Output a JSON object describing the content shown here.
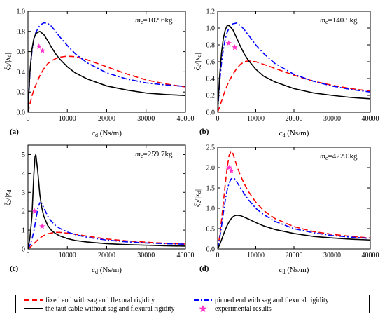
{
  "chart_data": [
    {
      "id": "a",
      "type": "line",
      "panel_label": "(a)",
      "annotation": "m_e=102.6kg",
      "annotation_sub": "e",
      "annotation_value": "=102.6kg",
      "xlabel": "c_d (Ns/m)",
      "ylabel": "ξ2/|x_d|",
      "xlim": [
        0,
        40000
      ],
      "ylim": [
        0,
        1.0
      ],
      "xticks": [
        0,
        10000,
        20000,
        30000,
        40000
      ],
      "yticks": [
        0.0,
        0.2,
        0.4,
        0.6,
        0.8,
        1.0
      ],
      "ytick_labels": [
        "0.0",
        "0.2",
        "0.4",
        "0.6",
        "0.8",
        "1.0"
      ],
      "x": [
        0,
        500,
        1000,
        1500,
        2000,
        3000,
        4000,
        5000,
        6000,
        7000,
        8000,
        10000,
        12000,
        15000,
        20000,
        25000,
        30000,
        35000,
        40000
      ],
      "series": [
        {
          "key": "fixed",
          "values": [
            0,
            0.08,
            0.16,
            0.22,
            0.27,
            0.36,
            0.43,
            0.48,
            0.51,
            0.53,
            0.545,
            0.555,
            0.55,
            0.52,
            0.45,
            0.38,
            0.32,
            0.28,
            0.25
          ]
        },
        {
          "key": "pinned",
          "values": [
            0,
            0.38,
            0.6,
            0.72,
            0.79,
            0.86,
            0.885,
            0.88,
            0.85,
            0.8,
            0.75,
            0.66,
            0.58,
            0.49,
            0.39,
            0.33,
            0.29,
            0.27,
            0.255
          ]
        },
        {
          "key": "taut",
          "values": [
            0,
            0.4,
            0.62,
            0.73,
            0.78,
            0.8,
            0.77,
            0.71,
            0.64,
            0.58,
            0.53,
            0.45,
            0.39,
            0.33,
            0.26,
            0.22,
            0.19,
            0.175,
            0.165
          ]
        }
      ],
      "experimental": [
        {
          "x": 2800,
          "y": 0.65
        },
        {
          "x": 3700,
          "y": 0.61
        }
      ]
    },
    {
      "id": "b",
      "type": "line",
      "panel_label": "(b)",
      "annotation": "m_e=140.5kg",
      "annotation_sub": "e",
      "annotation_value": "=140.5kg",
      "xlabel": "c_d (Ns/m)",
      "ylabel": "ξ2/|x_d|",
      "xlim": [
        0,
        40000
      ],
      "ylim": [
        0,
        1.2
      ],
      "xticks": [
        0,
        10000,
        20000,
        30000,
        40000
      ],
      "yticks": [
        0.0,
        0.2,
        0.4,
        0.6,
        0.8,
        1.0,
        1.2
      ],
      "ytick_labels": [
        "0.0",
        "0.2",
        "0.4",
        "0.6",
        "0.8",
        "1.0",
        "1.2"
      ],
      "x": [
        0,
        500,
        1000,
        1500,
        2000,
        2500,
        3000,
        4000,
        5000,
        6000,
        7000,
        8000,
        10000,
        12000,
        15000,
        20000,
        25000,
        30000,
        35000,
        40000
      ],
      "series": [
        {
          "key": "fixed",
          "values": [
            0,
            0.06,
            0.13,
            0.2,
            0.26,
            0.32,
            0.37,
            0.45,
            0.52,
            0.57,
            0.6,
            0.61,
            0.6,
            0.57,
            0.52,
            0.44,
            0.37,
            0.32,
            0.28,
            0.25
          ]
        },
        {
          "key": "pinned",
          "values": [
            0,
            0.35,
            0.58,
            0.75,
            0.87,
            0.95,
            1.0,
            1.05,
            1.06,
            1.03,
            0.98,
            0.92,
            0.8,
            0.7,
            0.58,
            0.45,
            0.37,
            0.31,
            0.27,
            0.24
          ]
        },
        {
          "key": "taut",
          "values": [
            0,
            0.42,
            0.7,
            0.88,
            0.98,
            1.03,
            1.03,
            0.98,
            0.88,
            0.78,
            0.69,
            0.62,
            0.51,
            0.43,
            0.36,
            0.28,
            0.23,
            0.2,
            0.175,
            0.16
          ]
        }
      ],
      "experimental": [
        {
          "x": 2900,
          "y": 0.82
        },
        {
          "x": 4500,
          "y": 0.77
        }
      ]
    },
    {
      "id": "c",
      "type": "line",
      "panel_label": "(c)",
      "annotation": "m_e=259.7kg",
      "annotation_sub": "e",
      "annotation_value": "=259.7kg",
      "xlabel": "c_d (Ns/m)",
      "ylabel": "ξ2/|x_d|",
      "xlim": [
        0,
        40000
      ],
      "ylim": [
        0,
        5.5
      ],
      "xticks": [
        0,
        10000,
        20000,
        30000,
        40000
      ],
      "yticks": [
        0,
        1,
        2,
        3,
        4,
        5
      ],
      "ytick_labels": [
        "0",
        "1",
        "2",
        "3",
        "4",
        "5"
      ],
      "x": [
        0,
        500,
        1000,
        1500,
        1800,
        2000,
        2500,
        3000,
        3500,
        4000,
        5000,
        6000,
        7000,
        8000,
        10000,
        12000,
        15000,
        20000,
        25000,
        30000,
        35000,
        40000
      ],
      "series": [
        {
          "key": "fixed",
          "values": [
            0,
            0.08,
            0.18,
            0.28,
            0.34,
            0.38,
            0.48,
            0.57,
            0.65,
            0.71,
            0.8,
            0.85,
            0.88,
            0.88,
            0.84,
            0.78,
            0.68,
            0.53,
            0.43,
            0.36,
            0.3,
            0.26
          ]
        },
        {
          "key": "pinned",
          "values": [
            0,
            0.2,
            0.5,
            0.95,
            1.3,
            1.55,
            2.15,
            2.45,
            2.4,
            2.2,
            1.75,
            1.45,
            1.25,
            1.1,
            0.9,
            0.76,
            0.62,
            0.47,
            0.38,
            0.32,
            0.28,
            0.25
          ]
        },
        {
          "key": "taut",
          "values": [
            0,
            0.6,
            1.7,
            4.0,
            4.9,
            5.0,
            4.1,
            2.9,
            2.2,
            1.75,
            1.25,
            0.98,
            0.82,
            0.7,
            0.55,
            0.45,
            0.37,
            0.28,
            0.23,
            0.2,
            0.17,
            0.15
          ]
        }
      ],
      "experimental": [
        {
          "x": 1700,
          "y": 2.0
        },
        {
          "x": 3600,
          "y": 1.2
        }
      ]
    },
    {
      "id": "d",
      "type": "line",
      "panel_label": "(d)",
      "annotation": "m_e=422.0kg",
      "annotation_sub": "e",
      "annotation_value": "=422.0kg",
      "xlabel": "c_d (Ns/m)",
      "ylabel": "ξ2/|x_d|",
      "xlim": [
        0,
        40000
      ],
      "ylim": [
        0,
        2.5
      ],
      "xticks": [
        0,
        10000,
        20000,
        30000,
        40000
      ],
      "yticks": [
        0.0,
        0.5,
        1.0,
        1.5,
        2.0,
        2.5
      ],
      "ytick_labels": [
        "0.0",
        "0.5",
        "1.0",
        "1.5",
        "2.0",
        "2.5"
      ],
      "x": [
        0,
        500,
        1000,
        1500,
        2000,
        2500,
        3000,
        3500,
        4000,
        4500,
        5000,
        6000,
        7000,
        8000,
        10000,
        12000,
        15000,
        20000,
        25000,
        30000,
        35000,
        40000
      ],
      "series": [
        {
          "key": "fixed",
          "values": [
            0,
            0.3,
            0.7,
            1.15,
            1.6,
            2.0,
            2.3,
            2.4,
            2.35,
            2.2,
            2.05,
            1.8,
            1.6,
            1.42,
            1.15,
            0.95,
            0.75,
            0.55,
            0.43,
            0.36,
            0.31,
            0.27
          ]
        },
        {
          "key": "pinned",
          "values": [
            0,
            0.25,
            0.55,
            0.9,
            1.2,
            1.45,
            1.62,
            1.72,
            1.75,
            1.72,
            1.65,
            1.5,
            1.35,
            1.22,
            1.0,
            0.85,
            0.68,
            0.5,
            0.4,
            0.33,
            0.29,
            0.26
          ]
        },
        {
          "key": "taut",
          "values": [
            0,
            0.1,
            0.22,
            0.35,
            0.47,
            0.58,
            0.67,
            0.74,
            0.79,
            0.82,
            0.83,
            0.82,
            0.78,
            0.74,
            0.65,
            0.57,
            0.48,
            0.38,
            0.31,
            0.27,
            0.24,
            0.22
          ]
        }
      ],
      "experimental": [
        {
          "x": 3000,
          "y": 2.0
        },
        {
          "x": 3600,
          "y": 1.92
        }
      ]
    }
  ],
  "legend": {
    "fixed": "fixed end with sag and flexural rigidity",
    "pinned": "pinned end with sag and flexural rigidity",
    "taut": "the taut cable without sag and flexural rigidity",
    "experimental": "experimental results"
  },
  "colors": {
    "fixed": "#ff0000",
    "pinned": "#0000ff",
    "taut": "#000000",
    "experimental": "#ff33cc"
  }
}
